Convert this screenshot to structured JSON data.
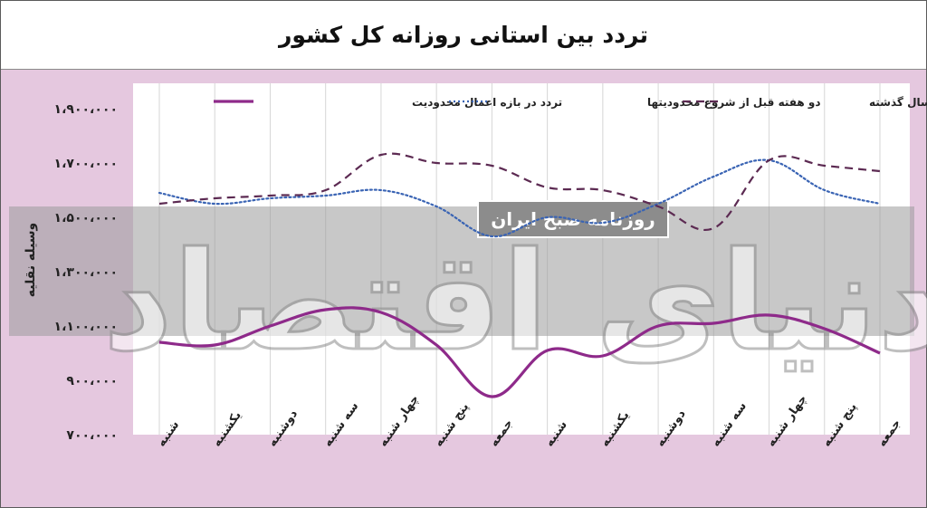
{
  "chart_data": {
    "type": "line",
    "title": "تردد بین استانی روزانه کل کشور",
    "ylabel": "وسیله نقلیه",
    "ylim": [
      700000,
      1900000
    ],
    "y_ticks": [
      700000,
      900000,
      1100000,
      1300000,
      1500000,
      1700000,
      1900000
    ],
    "y_tick_labels": [
      "۷۰۰،۰۰۰",
      "۹۰۰،۰۰۰",
      "۱،۱۰۰،۰۰۰",
      "۱،۳۰۰،۰۰۰",
      "۱،۵۰۰،۰۰۰",
      "۱،۷۰۰،۰۰۰",
      "۱،۹۰۰،۰۰۰"
    ],
    "categories": [
      "شنبه",
      "یکشنبه",
      "دوشنبه",
      "سه شنبه",
      "چهار شنبه",
      "پنج شنبه",
      "جمعه",
      "شنبه",
      "یکشنبه",
      "دوشنبه",
      "سه شنبه",
      "چهار شنبه",
      "پنج شنبه",
      "جمعه"
    ],
    "series": [
      {
        "name": "تردد در بازه اعمال محدودیت",
        "style": "solid",
        "color": "#8e2a8a",
        "values": [
          1040000,
          1030000,
          1100000,
          1160000,
          1150000,
          1030000,
          840000,
          1010000,
          990000,
          1100000,
          1110000,
          1140000,
          1090000,
          1000000
        ]
      },
      {
        "name": "دو هفته قبل از شروع محدودیتها",
        "style": "dotted",
        "color": "#3a64b4",
        "values": [
          1590000,
          1550000,
          1570000,
          1580000,
          1600000,
          1540000,
          1430000,
          1500000,
          1480000,
          1550000,
          1650000,
          1710000,
          1600000,
          1550000
        ]
      },
      {
        "name": "تردد مدت مشابه سال گذشته",
        "style": "dashed",
        "color": "#5c2a52",
        "values": [
          1550000,
          1570000,
          1580000,
          1600000,
          1730000,
          1700000,
          1690000,
          1610000,
          1600000,
          1540000,
          1460000,
          1710000,
          1690000,
          1670000
        ]
      }
    ],
    "legend_placement": "top",
    "grid": "vertical"
  },
  "watermark": {
    "small": "روزنامه صبح ایران",
    "big": "دنیای اقتصاد"
  }
}
